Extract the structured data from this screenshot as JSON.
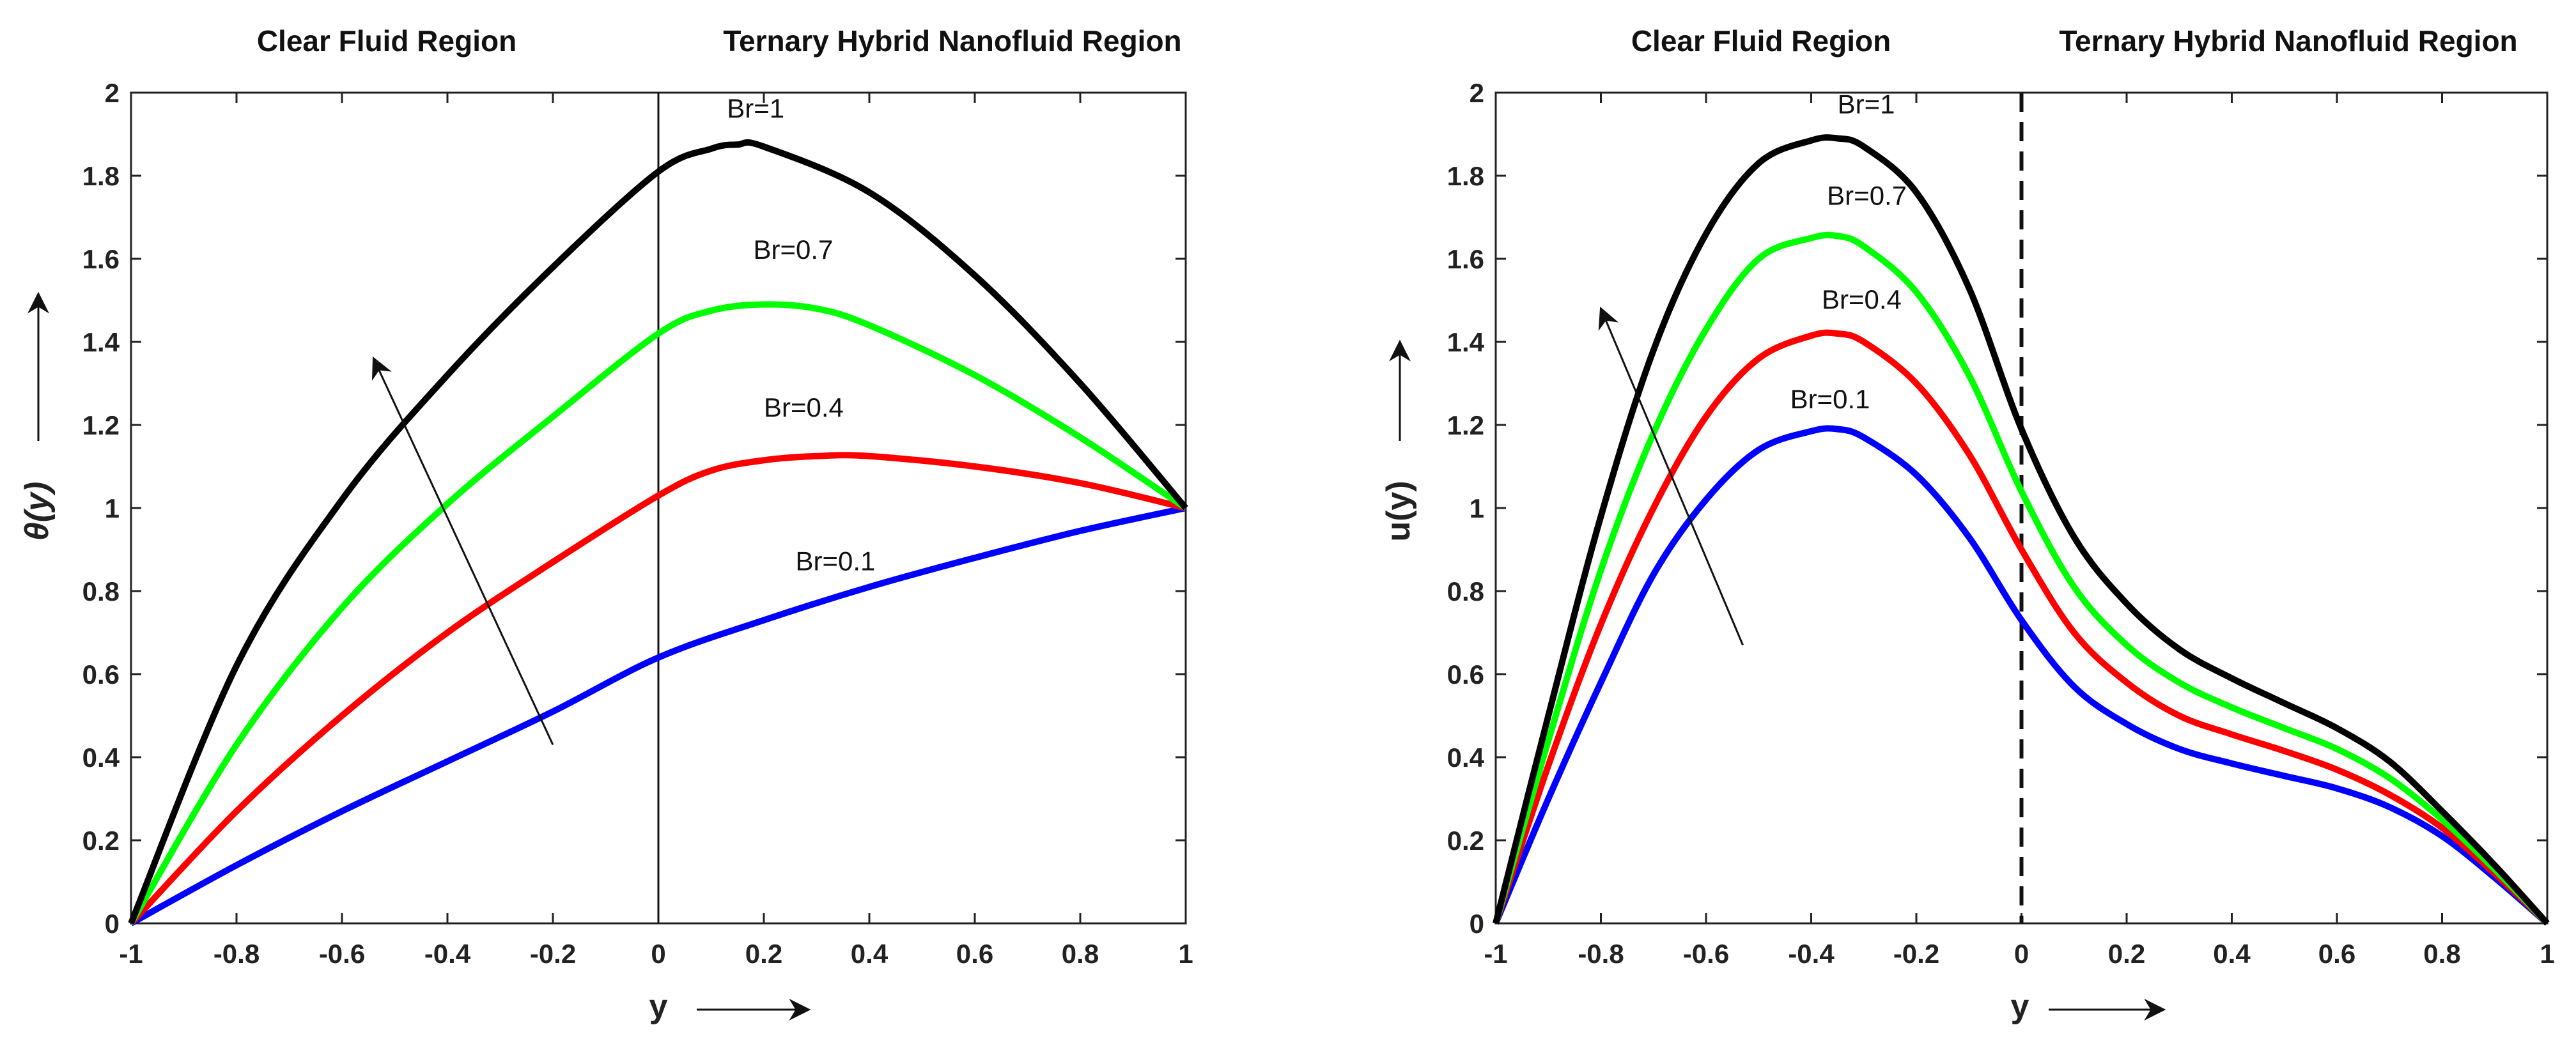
{
  "chart_data": [
    {
      "type": "line",
      "id": "left",
      "region_left": "Clear Fluid Region",
      "region_right": "Ternary Hybrid Nanofluid  Region",
      "xlabel": "y",
      "ylabel": "θ(y)",
      "xlim": [
        -1,
        1
      ],
      "ylim": [
        0,
        2
      ],
      "xticks": [
        "-1",
        "-0.8",
        "-0.6",
        "-0.4",
        "-0.2",
        "0",
        "0.2",
        "0.4",
        "0.6",
        "0.8",
        "1"
      ],
      "yticks": [
        "0",
        "0.2",
        "0.4",
        "0.6",
        "0.8",
        "1",
        "1.2",
        "1.4",
        "1.6",
        "1.8",
        "2"
      ],
      "interface_style": "solid",
      "series": [
        {
          "name": "Br=0.1",
          "color": "#0000ff",
          "x": [
            -1,
            -0.8,
            -0.6,
            -0.4,
            -0.2,
            0,
            0.2,
            0.4,
            0.6,
            0.8,
            1
          ],
          "y": [
            0,
            0.14,
            0.27,
            0.39,
            0.51,
            0.64,
            0.73,
            0.81,
            0.88,
            0.945,
            1.0
          ]
        },
        {
          "name": "Br=0.4",
          "color": "#ff0000",
          "x": [
            -1,
            -0.8,
            -0.6,
            -0.4,
            -0.2,
            0,
            0.1,
            0.2,
            0.3,
            0.4,
            0.6,
            0.8,
            1
          ],
          "y": [
            0,
            0.27,
            0.5,
            0.7,
            0.87,
            1.03,
            1.09,
            1.115,
            1.125,
            1.125,
            1.1,
            1.06,
            1.0
          ]
        },
        {
          "name": "Br=0.7",
          "color": "#00ff00",
          "x": [
            -1,
            -0.8,
            -0.6,
            -0.4,
            -0.2,
            0,
            0.1,
            0.2,
            0.3,
            0.4,
            0.6,
            0.8,
            1
          ],
          "y": [
            0,
            0.43,
            0.76,
            1.01,
            1.22,
            1.42,
            1.475,
            1.49,
            1.48,
            1.44,
            1.32,
            1.17,
            1.0
          ]
        },
        {
          "name": "Br=1",
          "color": "#000000",
          "x": [
            -1,
            -0.8,
            -0.6,
            -0.4,
            -0.2,
            0,
            0.1,
            0.15,
            0.2,
            0.4,
            0.6,
            0.8,
            1
          ],
          "y": [
            0,
            0.62,
            1.02,
            1.32,
            1.58,
            1.81,
            1.865,
            1.875,
            1.87,
            1.76,
            1.56,
            1.3,
            1.0
          ]
        }
      ],
      "labels": [
        {
          "text": "Br=1",
          "x": 0.13,
          "y": 1.94
        },
        {
          "text": "Br=0.7",
          "x": 0.18,
          "y": 1.6
        },
        {
          "text": "Br=0.4",
          "x": 0.2,
          "y": 1.22
        },
        {
          "text": "Br=0.1",
          "x": 0.26,
          "y": 0.85
        }
      ],
      "trend_arrow": {
        "from": [
          -0.2,
          0.43
        ],
        "to": [
          -0.54,
          1.36
        ]
      },
      "ylabel_arrow": "up",
      "xlabel_arrow": "right"
    },
    {
      "type": "line",
      "id": "right",
      "region_left": "Clear Fluid Region",
      "region_right": "Ternary Hybrid Nanofluid Region",
      "xlabel": "y",
      "ylabel": "u(y)",
      "xlim": [
        -1,
        1
      ],
      "ylim": [
        0,
        2
      ],
      "xticks": [
        "-1",
        "-0.8",
        "-0.6",
        "-0.4",
        "-0.2",
        "0",
        "0.2",
        "0.4",
        "0.6",
        "0.8",
        "1"
      ],
      "yticks": [
        "0",
        "0.2",
        "0.4",
        "0.6",
        "0.8",
        "1",
        "1.2",
        "1.4",
        "1.6",
        "1.8",
        "2"
      ],
      "interface_style": "dashed",
      "series": [
        {
          "name": "Br=0.1",
          "color": "#0000ff",
          "x": [
            -1,
            -0.9,
            -0.8,
            -0.7,
            -0.6,
            -0.5,
            -0.4,
            -0.35,
            -0.3,
            -0.2,
            -0.1,
            0,
            0.1,
            0.2,
            0.3,
            0.4,
            0.5,
            0.6,
            0.7,
            0.8,
            0.9,
            1
          ],
          "y": [
            0,
            0.3,
            0.58,
            0.84,
            1.02,
            1.14,
            1.185,
            1.19,
            1.17,
            1.08,
            0.93,
            0.73,
            0.57,
            0.48,
            0.42,
            0.385,
            0.355,
            0.325,
            0.28,
            0.21,
            0.11,
            0
          ]
        },
        {
          "name": "Br=0.4",
          "color": "#ff0000",
          "x": [
            -1,
            -0.9,
            -0.8,
            -0.7,
            -0.6,
            -0.5,
            -0.4,
            -0.35,
            -0.3,
            -0.2,
            -0.1,
            0,
            0.1,
            0.2,
            0.3,
            0.4,
            0.5,
            0.6,
            0.7,
            0.8,
            0.9,
            1
          ],
          "y": [
            0,
            0.38,
            0.72,
            1.0,
            1.22,
            1.36,
            1.415,
            1.42,
            1.4,
            1.3,
            1.13,
            0.9,
            0.7,
            0.58,
            0.5,
            0.455,
            0.415,
            0.37,
            0.31,
            0.23,
            0.12,
            0
          ]
        },
        {
          "name": "Br=0.7",
          "color": "#00ff00",
          "x": [
            -1,
            -0.9,
            -0.8,
            -0.7,
            -0.6,
            -0.5,
            -0.4,
            -0.35,
            -0.3,
            -0.2,
            -0.1,
            0,
            0.1,
            0.2,
            0.3,
            0.4,
            0.5,
            0.6,
            0.7,
            0.8,
            0.9,
            1
          ],
          "y": [
            0,
            0.44,
            0.85,
            1.18,
            1.43,
            1.6,
            1.65,
            1.655,
            1.63,
            1.52,
            1.32,
            1.04,
            0.81,
            0.67,
            0.58,
            0.52,
            0.47,
            0.42,
            0.35,
            0.25,
            0.13,
            0
          ]
        },
        {
          "name": "Br=1",
          "color": "#000000",
          "x": [
            -1,
            -0.9,
            -0.8,
            -0.7,
            -0.6,
            -0.5,
            -0.4,
            -0.35,
            -0.3,
            -0.2,
            -0.1,
            0,
            0.1,
            0.2,
            0.3,
            0.4,
            0.5,
            0.6,
            0.7,
            0.8,
            0.9,
            1
          ],
          "y": [
            0,
            0.5,
            0.98,
            1.38,
            1.66,
            1.83,
            1.885,
            1.89,
            1.87,
            1.76,
            1.53,
            1.19,
            0.93,
            0.77,
            0.66,
            0.59,
            0.53,
            0.47,
            0.39,
            0.27,
            0.14,
            0
          ]
        }
      ],
      "labels": [
        {
          "text": "Br=1",
          "x": -0.35,
          "y": 1.95
        },
        {
          "text": "Br=0.7",
          "x": -0.37,
          "y": 1.73
        },
        {
          "text": "Br=0.4",
          "x": -0.38,
          "y": 1.48
        },
        {
          "text": "Br=0.1",
          "x": -0.44,
          "y": 1.24
        }
      ],
      "trend_arrow": {
        "from": [
          -0.53,
          0.67
        ],
        "to": [
          -0.8,
          1.48
        ]
      },
      "ylabel_arrow": "up",
      "xlabel_arrow": "right"
    }
  ]
}
